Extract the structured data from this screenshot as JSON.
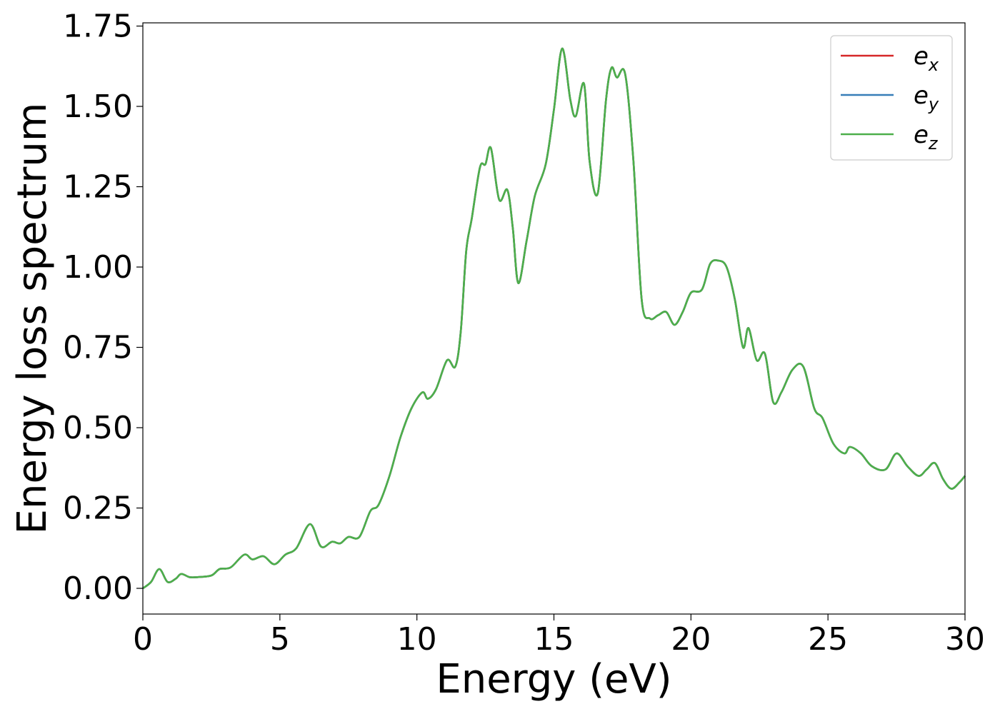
{
  "chart_data": {
    "type": "line",
    "title": "",
    "xlabel": "Energy (eV)",
    "ylabel": "Energy loss spectrum",
    "xlim": [
      0,
      30
    ],
    "ylim": [
      -0.08,
      1.76
    ],
    "x_ticks": [
      0,
      5,
      10,
      15,
      20,
      25,
      30
    ],
    "x_tick_labels": [
      "0",
      "5",
      "10",
      "15",
      "20",
      "25",
      "30"
    ],
    "y_ticks": [
      0,
      0.25,
      0.5,
      0.75,
      1.0,
      1.25,
      1.5,
      1.75
    ],
    "y_tick_labels": [
      "0.00",
      "0.25",
      "0.50",
      "0.75",
      "1.00",
      "1.25",
      "1.50",
      "1.75"
    ],
    "grid": false,
    "legend_position": "top-right",
    "x": [
      0,
      0.3,
      0.6,
      0.9,
      1.2,
      1.4,
      1.7,
      2.0,
      2.5,
      2.8,
      3.2,
      3.7,
      4.0,
      4.4,
      4.8,
      5.2,
      5.6,
      6.1,
      6.5,
      6.9,
      7.2,
      7.5,
      7.9,
      8.3,
      8.6,
      9.0,
      9.4,
      9.8,
      10.2,
      10.4,
      10.7,
      11.1,
      11.4,
      11.6,
      11.8,
      12.0,
      12.3,
      12.5,
      12.7,
      13.0,
      13.3,
      13.5,
      13.7,
      14.0,
      14.3,
      14.7,
      15.0,
      15.3,
      15.6,
      15.8,
      16.1,
      16.3,
      16.6,
      16.9,
      17.1,
      17.3,
      17.6,
      17.9,
      18.2,
      18.5,
      18.8,
      19.1,
      19.4,
      19.7,
      20.0,
      20.4,
      20.7,
      21.0,
      21.3,
      21.6,
      21.9,
      22.1,
      22.4,
      22.7,
      23.0,
      23.3,
      23.7,
      24.1,
      24.5,
      24.8,
      25.2,
      25.6,
      25.8,
      26.2,
      26.6,
      27.1,
      27.5,
      27.9,
      28.3,
      28.6,
      28.9,
      29.2,
      29.5,
      29.8,
      30.0
    ],
    "series": [
      {
        "name": "e_x",
        "color": "#d62728",
        "values": [
          0.0,
          0.02,
          0.06,
          0.02,
          0.03,
          0.045,
          0.035,
          0.035,
          0.04,
          0.06,
          0.065,
          0.105,
          0.09,
          0.1,
          0.075,
          0.105,
          0.125,
          0.2,
          0.13,
          0.145,
          0.14,
          0.16,
          0.16,
          0.24,
          0.26,
          0.35,
          0.47,
          0.56,
          0.61,
          0.59,
          0.62,
          0.71,
          0.69,
          0.8,
          1.05,
          1.15,
          1.31,
          1.32,
          1.37,
          1.21,
          1.24,
          1.12,
          0.95,
          1.08,
          1.22,
          1.32,
          1.49,
          1.68,
          1.52,
          1.47,
          1.57,
          1.33,
          1.23,
          1.52,
          1.62,
          1.59,
          1.6,
          1.33,
          0.9,
          0.84,
          0.85,
          0.86,
          0.82,
          0.86,
          0.92,
          0.93,
          1.01,
          1.02,
          1.0,
          0.9,
          0.75,
          0.81,
          0.71,
          0.73,
          0.58,
          0.61,
          0.68,
          0.69,
          0.56,
          0.53,
          0.45,
          0.42,
          0.44,
          0.42,
          0.38,
          0.37,
          0.42,
          0.38,
          0.35,
          0.37,
          0.39,
          0.34,
          0.31,
          0.33,
          0.35
        ]
      },
      {
        "name": "e_y",
        "color": "#377eb8",
        "values": [
          0.0,
          0.02,
          0.06,
          0.02,
          0.03,
          0.045,
          0.035,
          0.035,
          0.04,
          0.06,
          0.065,
          0.105,
          0.09,
          0.1,
          0.075,
          0.105,
          0.125,
          0.2,
          0.13,
          0.145,
          0.14,
          0.16,
          0.16,
          0.24,
          0.26,
          0.35,
          0.47,
          0.56,
          0.61,
          0.59,
          0.62,
          0.71,
          0.69,
          0.8,
          1.05,
          1.15,
          1.31,
          1.32,
          1.37,
          1.21,
          1.24,
          1.12,
          0.95,
          1.08,
          1.22,
          1.32,
          1.49,
          1.68,
          1.52,
          1.47,
          1.57,
          1.33,
          1.23,
          1.52,
          1.62,
          1.59,
          1.6,
          1.33,
          0.9,
          0.84,
          0.85,
          0.86,
          0.82,
          0.86,
          0.92,
          0.93,
          1.01,
          1.02,
          1.0,
          0.9,
          0.75,
          0.81,
          0.71,
          0.73,
          0.58,
          0.61,
          0.68,
          0.69,
          0.56,
          0.53,
          0.45,
          0.42,
          0.44,
          0.42,
          0.38,
          0.37,
          0.42,
          0.38,
          0.35,
          0.37,
          0.39,
          0.34,
          0.31,
          0.33,
          0.35
        ]
      },
      {
        "name": "e_z",
        "color": "#4daf4a",
        "values": [
          0.0,
          0.02,
          0.06,
          0.02,
          0.03,
          0.045,
          0.035,
          0.035,
          0.04,
          0.06,
          0.065,
          0.105,
          0.09,
          0.1,
          0.075,
          0.105,
          0.125,
          0.2,
          0.13,
          0.145,
          0.14,
          0.16,
          0.16,
          0.24,
          0.26,
          0.35,
          0.47,
          0.56,
          0.61,
          0.59,
          0.62,
          0.71,
          0.69,
          0.8,
          1.05,
          1.15,
          1.31,
          1.32,
          1.37,
          1.21,
          1.24,
          1.12,
          0.95,
          1.08,
          1.22,
          1.32,
          1.49,
          1.68,
          1.52,
          1.47,
          1.57,
          1.33,
          1.23,
          1.52,
          1.62,
          1.59,
          1.6,
          1.33,
          0.9,
          0.84,
          0.85,
          0.86,
          0.82,
          0.86,
          0.92,
          0.93,
          1.01,
          1.02,
          1.0,
          0.9,
          0.75,
          0.81,
          0.71,
          0.73,
          0.58,
          0.61,
          0.68,
          0.69,
          0.56,
          0.53,
          0.45,
          0.42,
          0.44,
          0.42,
          0.38,
          0.37,
          0.42,
          0.38,
          0.35,
          0.37,
          0.39,
          0.34,
          0.31,
          0.33,
          0.35
        ]
      }
    ],
    "legend": [
      {
        "base": "e",
        "sub": "x",
        "color": "#d62728"
      },
      {
        "base": "e",
        "sub": "y",
        "color": "#377eb8"
      },
      {
        "base": "e",
        "sub": "z",
        "color": "#4daf4a"
      }
    ]
  }
}
